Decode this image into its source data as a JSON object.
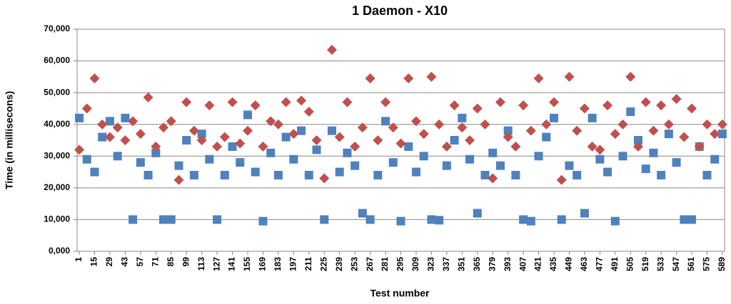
{
  "chart_data": {
    "type": "scatter",
    "title": "1 Daemon - X10",
    "x_label": "Test number",
    "y_label": "Time (in millisecons)",
    "x": [
      1,
      8,
      15,
      22,
      29,
      36,
      43,
      50,
      57,
      64,
      71,
      78,
      85,
      92,
      99,
      106,
      113,
      120,
      127,
      134,
      141,
      148,
      155,
      162,
      169,
      176,
      183,
      190,
      197,
      204,
      211,
      218,
      225,
      232,
      239,
      246,
      253,
      260,
      267,
      274,
      281,
      288,
      295,
      302,
      309,
      316,
      323,
      330,
      337,
      344,
      351,
      358,
      365,
      372,
      379,
      386,
      393,
      400,
      407,
      414,
      421,
      428,
      435,
      442,
      449,
      456,
      463,
      470,
      477,
      484,
      491,
      498,
      505,
      512,
      519,
      526,
      533,
      540,
      547,
      554,
      561,
      568,
      575,
      582,
      589
    ],
    "series": [
      {
        "color": "#4f81bd",
        "marker": "square",
        "values": [
          42000,
          29000,
          25000,
          36000,
          41000,
          30000,
          42000,
          10000,
          28000,
          24000,
          31000,
          10000,
          10000,
          27000,
          35000,
          24000,
          37000,
          29000,
          10000,
          24000,
          33000,
          28000,
          43000,
          25000,
          9500,
          31000,
          24000,
          36000,
          29000,
          38000,
          24000,
          32000,
          10000,
          38000,
          25000,
          31000,
          27000,
          12000,
          10000,
          24000,
          41000,
          28000,
          9500,
          33000,
          25000,
          30000,
          10000,
          9800,
          27000,
          35000,
          42000,
          29000,
          12000,
          24000,
          31000,
          27000,
          38000,
          24000,
          10000,
          9500,
          30000,
          36000,
          42000,
          10000,
          27000,
          24000,
          12000,
          42000,
          29000,
          25000,
          9500,
          30000,
          44000,
          35000,
          26000,
          31000,
          24000,
          37000,
          28000,
          10000,
          10000,
          33000,
          24000,
          29000,
          37000
        ]
      },
      {
        "color": "#c0504d",
        "marker": "diamond",
        "values": [
          32000,
          45000,
          54500,
          40000,
          36000,
          39000,
          35000,
          41000,
          37000,
          48500,
          33000,
          39000,
          41000,
          22500,
          47000,
          38000,
          35000,
          46000,
          33000,
          36000,
          47000,
          34000,
          38000,
          46000,
          33000,
          41000,
          40000,
          47000,
          37000,
          47500,
          44000,
          35000,
          23000,
          63500,
          36000,
          47000,
          33000,
          39000,
          54500,
          35000,
          47000,
          39000,
          34000,
          54500,
          41000,
          37000,
          55000,
          40000,
          33000,
          46000,
          39000,
          35000,
          45000,
          40000,
          23000,
          47000,
          36000,
          33000,
          46000,
          38000,
          54500,
          40000,
          47000,
          22500,
          55000,
          38000,
          45000,
          33000,
          32000,
          46000,
          37000,
          40000,
          55000,
          33000,
          47000,
          38000,
          46000,
          40000,
          48000,
          36000,
          45000,
          33000,
          40000,
          37000,
          40000
        ]
      }
    ],
    "xlim": [
      -1,
      591
    ],
    "xticks": [
      1,
      15,
      29,
      43,
      57,
      71,
      85,
      99,
      113,
      127,
      141,
      155,
      169,
      183,
      197,
      211,
      225,
      239,
      253,
      267,
      281,
      295,
      309,
      323,
      337,
      351,
      365,
      379,
      393,
      407,
      421,
      435,
      449,
      463,
      477,
      491,
      505,
      519,
      533,
      547,
      561,
      575,
      589
    ],
    "ylim": [
      0,
      70000
    ],
    "yticks": [
      {
        "value": 0,
        "label": "0,000"
      },
      {
        "value": 10000,
        "label": "10,000"
      },
      {
        "value": 20000,
        "label": "20,000"
      },
      {
        "value": 30000,
        "label": "30,000"
      },
      {
        "value": 40000,
        "label": "40,000"
      },
      {
        "value": 50000,
        "label": "50,000"
      },
      {
        "value": 60000,
        "label": "60,000"
      },
      {
        "value": 70000,
        "label": "70,000"
      }
    ],
    "grid": true
  }
}
